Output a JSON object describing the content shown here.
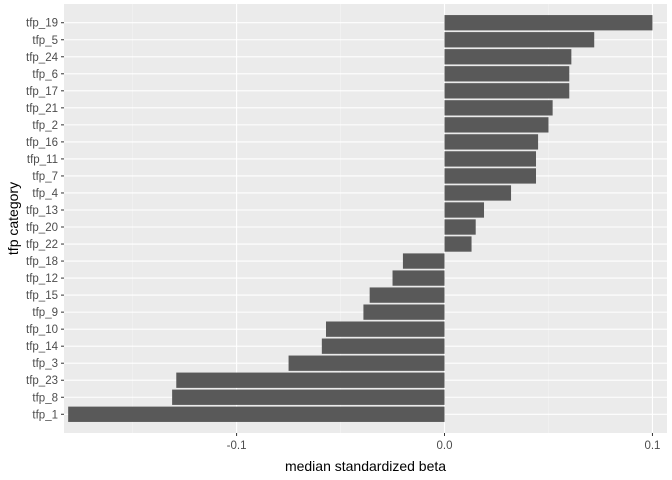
{
  "chart_data": {
    "type": "bar",
    "orientation": "horizontal",
    "xlabel": "median standardized beta",
    "ylabel": "tfp category",
    "xlim": [
      -0.183,
      0.107
    ],
    "x_ticks": [
      -0.1,
      0.0,
      0.1
    ],
    "x_tick_labels": [
      "-0.1",
      "0.0",
      "0.1"
    ],
    "x_minor_ticks": [
      -0.15,
      -0.05,
      0.05
    ],
    "grid": true,
    "categories": [
      "tfp_19",
      "tfp_5",
      "tfp_24",
      "tfp_6",
      "tfp_17",
      "tfp_21",
      "tfp_2",
      "tfp_16",
      "tfp_11",
      "tfp_7",
      "tfp_4",
      "tfp_13",
      "tfp_20",
      "tfp_22",
      "tfp_18",
      "tfp_12",
      "tfp_15",
      "tfp_9",
      "tfp_10",
      "tfp_14",
      "tfp_3",
      "tfp_23",
      "tfp_8",
      "tfp_1"
    ],
    "values": [
      0.1,
      0.072,
      0.061,
      0.06,
      0.06,
      0.052,
      0.05,
      0.045,
      0.044,
      0.044,
      0.032,
      0.019,
      0.015,
      0.013,
      -0.02,
      -0.025,
      -0.036,
      -0.039,
      -0.057,
      -0.059,
      -0.075,
      -0.129,
      -0.131,
      -0.181
    ],
    "colors": {
      "bar": "#595959",
      "panel": "#ebebeb",
      "grid_major": "#ffffff",
      "grid_minor": "#f5f5f5",
      "tick_label": "#4d4d4d",
      "axis_title": "#000000"
    }
  }
}
